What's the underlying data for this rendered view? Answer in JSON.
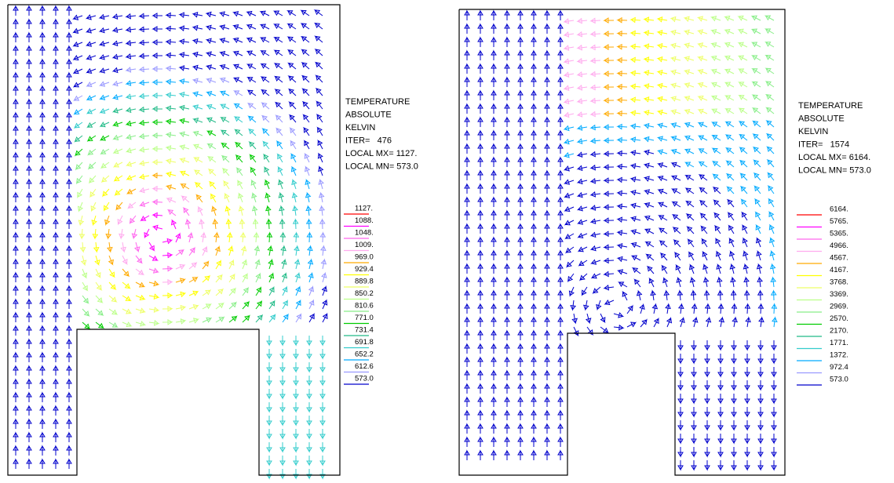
{
  "panels": [
    {
      "title_lines": [
        "TEMPERATURE",
        "ABSOLUTE",
        "KELVIN"
      ],
      "iter": "ITER=   476",
      "local_mx": "LOCAL MX= 1127.",
      "local_mn": "LOCAL MN= 573.0",
      "legend": [
        {
          "label": "1127.",
          "color": "#ff0000"
        },
        {
          "label": "1088.",
          "color": "#ff00ff"
        },
        {
          "label": "1048.",
          "color": "#ff66ee"
        },
        {
          "label": "1009.",
          "color": "#ffaaee"
        },
        {
          "label": "969.0",
          "color": "#ffaa00"
        },
        {
          "label": "929.4",
          "color": "#ffff00"
        },
        {
          "label": "889.8",
          "color": "#eeff66"
        },
        {
          "label": "850.2",
          "color": "#bbff88"
        },
        {
          "label": "810.6",
          "color": "#88ee88"
        },
        {
          "label": "771.0",
          "color": "#00cc00"
        },
        {
          "label": "731.4",
          "color": "#22bb88"
        },
        {
          "label": "691.8",
          "color": "#33cccc"
        },
        {
          "label": "652.2",
          "color": "#00aaff"
        },
        {
          "label": "612.6",
          "color": "#9999ff"
        },
        {
          "label": "573.0",
          "color": "#0000cc"
        }
      ]
    },
    {
      "title_lines": [
        "TEMPERATURE",
        "ABSOLUTE",
        "KELVIN"
      ],
      "iter": "ITER=   1574",
      "local_mx": "LOCAL MX= 6164.",
      "local_mn": "LOCAL MN= 573.0",
      "legend": [
        {
          "label": "6164.",
          "color": "#ff0000"
        },
        {
          "label": "5765.",
          "color": "#ff00ff"
        },
        {
          "label": "5365.",
          "color": "#ff66ee"
        },
        {
          "label": "4966.",
          "color": "#ffaaee"
        },
        {
          "label": "4567.",
          "color": "#ffaa00"
        },
        {
          "label": "4167.",
          "color": "#ffff00"
        },
        {
          "label": "3768.",
          "color": "#eeff66"
        },
        {
          "label": "3369.",
          "color": "#bbff88"
        },
        {
          "label": "2969.",
          "color": "#88ee88"
        },
        {
          "label": "2570.",
          "color": "#00cc00"
        },
        {
          "label": "2170.",
          "color": "#22bb88"
        },
        {
          "label": "1771.",
          "color": "#33cccc"
        },
        {
          "label": "1372.",
          "color": "#00aaff"
        },
        {
          "label": "972.4",
          "color": "#9999ff"
        },
        {
          "label": "573.0",
          "color": "#0000cc"
        }
      ]
    }
  ]
}
